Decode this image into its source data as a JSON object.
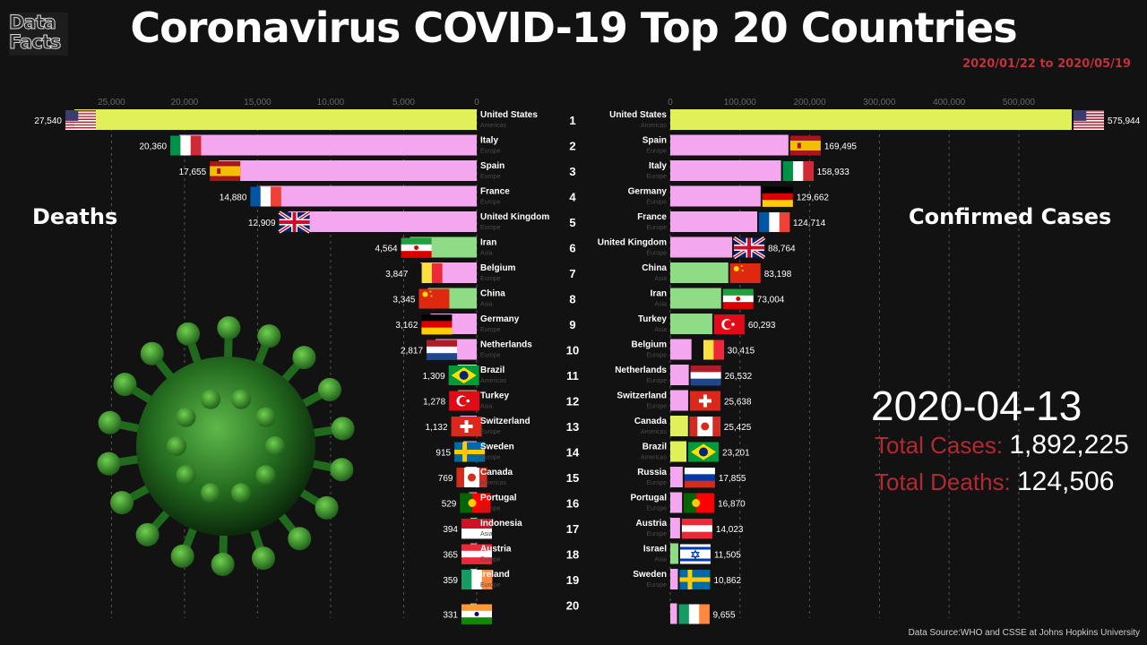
{
  "header": {
    "logo_line1": "Data",
    "logo_line2": "Facts",
    "title": "Coronavirus COVID-19 Top 20 Countries",
    "date_range": "2020/01/22 to 2020/05/19"
  },
  "panels": {
    "deaths_label": "Deaths",
    "cases_label": "Confirmed Cases"
  },
  "summary": {
    "date": "2020-04-13",
    "total_cases_label": "Total Cases:",
    "total_cases": "1,892,225",
    "total_deaths_label": "Total Deaths:",
    "total_deaths": "124,506"
  },
  "footer": {
    "source": "Data Source:WHO and CSSE at Johns Hopkins University"
  },
  "colors": {
    "Americas": "#dff05a",
    "Europe": "#f4a6ee",
    "Asia": "#8fdc86",
    "accent_red": "#c2303a"
  },
  "chart_data": [
    {
      "type": "bar",
      "name": "Deaths",
      "orientation": "horizontal",
      "direction": "right-to-left",
      "xlim": [
        0,
        28000
      ],
      "ticks": [
        "25,000",
        "20,000",
        "15,000",
        "10,000",
        "5,000",
        "0"
      ],
      "ranks": [
        "1",
        "2",
        "3",
        "4",
        "5",
        "6",
        "7",
        "8",
        "9",
        "10",
        "11",
        "12",
        "13",
        "14",
        "15",
        "16",
        "17",
        "18",
        "19",
        "20"
      ],
      "rows": [
        {
          "country": "United States",
          "region": "Americas",
          "value": 27540,
          "label": "27,540",
          "flag": "us"
        },
        {
          "country": "Italy",
          "region": "Europe",
          "value": 20360,
          "label": "20,360",
          "flag": "it"
        },
        {
          "country": "Spain",
          "region": "Europe",
          "value": 17655,
          "label": "17,655",
          "flag": "es"
        },
        {
          "country": "France",
          "region": "Europe",
          "value": 14880,
          "label": "14,880",
          "flag": "fr"
        },
        {
          "country": "United Kingdom",
          "region": "Europe",
          "value": 12909,
          "label": "12,909",
          "flag": "gb"
        },
        {
          "country": "Iran",
          "region": "Asia",
          "value": 4564,
          "label": "4,564",
          "flag": "ir"
        },
        {
          "country": "Belgium",
          "region": "Europe",
          "value": 3847,
          "label": "3,847",
          "flag": "be"
        },
        {
          "country": "China",
          "region": "Asia",
          "value": 3345,
          "label": "3,345",
          "flag": "cn"
        },
        {
          "country": "Germany",
          "region": "Europe",
          "value": 3162,
          "label": "3,162",
          "flag": "de"
        },
        {
          "country": "Netherlands",
          "region": "Europe",
          "value": 2817,
          "label": "2,817",
          "flag": "nl"
        },
        {
          "country": "Brazil",
          "region": "Americas",
          "value": 1309,
          "label": "1,309",
          "flag": "br"
        },
        {
          "country": "Turkey",
          "region": "Asia",
          "value": 1278,
          "label": "1,278",
          "flag": "tr"
        },
        {
          "country": "Switzerland",
          "region": "Europe",
          "value": 1132,
          "label": "1,132",
          "flag": "ch"
        },
        {
          "country": "Sweden",
          "region": "Europe",
          "value": 915,
          "label": "915",
          "flag": "se"
        },
        {
          "country": "Canada",
          "region": "Americas",
          "value": 769,
          "label": "769",
          "flag": "ca"
        },
        {
          "country": "Portugal",
          "region": "Europe",
          "value": 529,
          "label": "529",
          "flag": "pt"
        },
        {
          "country": "Indonesia",
          "region": "Asia",
          "value": 394,
          "label": "394",
          "flag": "id"
        },
        {
          "country": "Austria",
          "region": "Europe",
          "value": 365,
          "label": "365",
          "flag": "at"
        },
        {
          "country": "Ireland",
          "region": "Europe",
          "value": 359,
          "label": "359",
          "flag": "ie"
        },
        {
          "country": "",
          "region": "Asia",
          "value": 331,
          "label": "331",
          "flag": "in"
        }
      ]
    },
    {
      "type": "bar",
      "name": "Confirmed Cases",
      "orientation": "horizontal",
      "direction": "left-to-right",
      "xlim": [
        0,
        580000
      ],
      "ticks": [
        "0",
        "100,000",
        "200,000",
        "300,000",
        "400,000",
        "500,000"
      ],
      "rows": [
        {
          "country": "United States",
          "region": "Americas",
          "value": 575944,
          "label": "575,944",
          "flag": "us"
        },
        {
          "country": "Spain",
          "region": "Europe",
          "value": 169495,
          "label": "169,495",
          "flag": "es"
        },
        {
          "country": "Italy",
          "region": "Europe",
          "value": 158933,
          "label": "158,933",
          "flag": "it"
        },
        {
          "country": "Germany",
          "region": "Europe",
          "value": 129662,
          "label": "129,662",
          "flag": "de"
        },
        {
          "country": "France",
          "region": "Europe",
          "value": 124714,
          "label": "124,714",
          "flag": "fr"
        },
        {
          "country": "United Kingdom",
          "region": "Europe",
          "value": 88764,
          "label": "88,764",
          "flag": "gb"
        },
        {
          "country": "China",
          "region": "Asia",
          "value": 83198,
          "label": "83,198",
          "flag": "cn"
        },
        {
          "country": "Iran",
          "region": "Asia",
          "value": 73004,
          "label": "73,004",
          "flag": "ir"
        },
        {
          "country": "Turkey",
          "region": "Asia",
          "value": 60293,
          "label": "60,293",
          "flag": "tr"
        },
        {
          "country": "Belgium",
          "region": "Europe",
          "value": 30415,
          "label": "30,415",
          "flag": "be"
        },
        {
          "country": "Netherlands",
          "region": "Europe",
          "value": 26532,
          "label": "26,532",
          "flag": "nl"
        },
        {
          "country": "Switzerland",
          "region": "Europe",
          "value": 25638,
          "label": "25,638",
          "flag": "ch"
        },
        {
          "country": "Canada",
          "region": "Americas",
          "value": 25425,
          "label": "25,425",
          "flag": "ca"
        },
        {
          "country": "Brazil",
          "region": "Americas",
          "value": 23201,
          "label": "23,201",
          "flag": "br"
        },
        {
          "country": "Russia",
          "region": "Europe",
          "value": 17855,
          "label": "17,855",
          "flag": "ru"
        },
        {
          "country": "Portugal",
          "region": "Europe",
          "value": 16870,
          "label": "16,870",
          "flag": "pt"
        },
        {
          "country": "Austria",
          "region": "Europe",
          "value": 14023,
          "label": "14,023",
          "flag": "at"
        },
        {
          "country": "Israel",
          "region": "Asia",
          "value": 11505,
          "label": "11,505",
          "flag": "il"
        },
        {
          "country": "Sweden",
          "region": "Europe",
          "value": 10862,
          "label": "10,862",
          "flag": "se"
        },
        {
          "country": "",
          "region": "Europe",
          "value": 9655,
          "label": "9,655",
          "flag": "ie"
        }
      ]
    }
  ]
}
